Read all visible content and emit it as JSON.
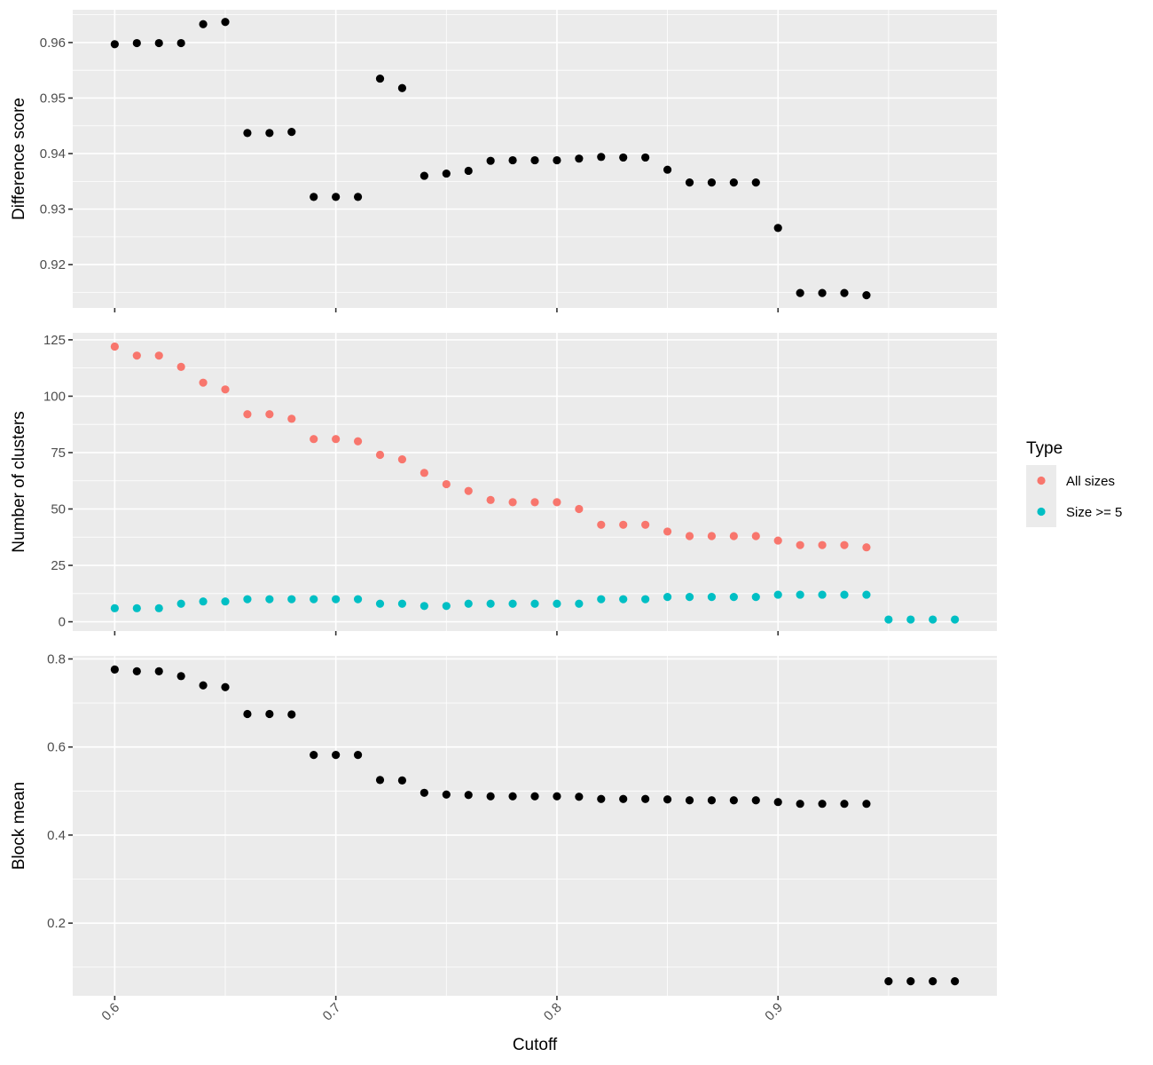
{
  "chart_data": [
    {
      "type": "scatter",
      "ylabel": "Difference score",
      "xlim": [
        0.581,
        0.999
      ],
      "ylim": [
        0.9122,
        0.9659
      ],
      "y_ticks": [
        0.92,
        0.93,
        0.94,
        0.95,
        0.96
      ],
      "y_tick_labels": [
        "0.92",
        "0.93",
        "0.94",
        "0.95",
        "0.96"
      ],
      "grid": true,
      "series": [
        {
          "color": "#000000",
          "x": [
            0.6,
            0.61,
            0.62,
            0.63,
            0.64,
            0.65,
            0.66,
            0.67,
            0.68,
            0.69,
            0.7,
            0.71,
            0.72,
            0.73,
            0.74,
            0.75,
            0.76,
            0.77,
            0.78,
            0.79,
            0.8,
            0.81,
            0.82,
            0.83,
            0.84,
            0.85,
            0.86,
            0.87,
            0.88,
            0.89,
            0.9,
            0.91,
            0.92,
            0.93,
            0.94
          ],
          "y": [
            0.9597,
            0.9599,
            0.9599,
            0.9599,
            0.9633,
            0.9637,
            0.9437,
            0.9437,
            0.9439,
            0.9322,
            0.9322,
            0.9322,
            0.9535,
            0.9518,
            0.936,
            0.9364,
            0.9369,
            0.9387,
            0.9388,
            0.9388,
            0.9388,
            0.9391,
            0.9394,
            0.9393,
            0.9393,
            0.9371,
            0.9348,
            0.9348,
            0.9348,
            0.9348,
            0.9266,
            0.9149,
            0.9149,
            0.9149,
            0.9145
          ]
        }
      ]
    },
    {
      "type": "scatter",
      "ylabel": "Number of clusters",
      "xlim": [
        0.581,
        0.999
      ],
      "ylim": [
        -4.1,
        128.1
      ],
      "y_ticks": [
        0,
        25,
        50,
        75,
        100,
        125
      ],
      "y_tick_labels": [
        "0",
        "25",
        "50",
        "75",
        "100",
        "125"
      ],
      "grid": true,
      "legend": {
        "title": "Type",
        "position": "right",
        "entries": [
          {
            "label": "All sizes",
            "color": "#F8766D"
          },
          {
            "label": "Size >= 5",
            "color": "#00BFC4"
          }
        ]
      },
      "series": [
        {
          "name": "All sizes",
          "color": "#F8766D",
          "x": [
            0.6,
            0.61,
            0.62,
            0.63,
            0.64,
            0.65,
            0.66,
            0.67,
            0.68,
            0.69,
            0.7,
            0.71,
            0.72,
            0.73,
            0.74,
            0.75,
            0.76,
            0.77,
            0.78,
            0.79,
            0.8,
            0.81,
            0.82,
            0.83,
            0.84,
            0.85,
            0.86,
            0.87,
            0.88,
            0.89,
            0.9,
            0.91,
            0.92,
            0.93,
            0.94
          ],
          "y": [
            122,
            118,
            118,
            113,
            106,
            103,
            92,
            92,
            90,
            81,
            81,
            80,
            74,
            72,
            66,
            61,
            58,
            54,
            53,
            53,
            53,
            50,
            43,
            43,
            43,
            40,
            38,
            38,
            38,
            38,
            36,
            34,
            34,
            34,
            33
          ]
        },
        {
          "name": "Size >= 5",
          "color": "#00BFC4",
          "x": [
            0.6,
            0.61,
            0.62,
            0.63,
            0.64,
            0.65,
            0.66,
            0.67,
            0.68,
            0.69,
            0.7,
            0.71,
            0.72,
            0.73,
            0.74,
            0.75,
            0.76,
            0.77,
            0.78,
            0.79,
            0.8,
            0.81,
            0.82,
            0.83,
            0.84,
            0.85,
            0.86,
            0.87,
            0.88,
            0.89,
            0.9,
            0.91,
            0.92,
            0.93,
            0.94,
            0.95,
            0.96,
            0.97,
            0.98
          ],
          "y": [
            6,
            6,
            6,
            8,
            9,
            9,
            10,
            10,
            10,
            10,
            10,
            10,
            8,
            8,
            7,
            7,
            8,
            8,
            8,
            8,
            8,
            8,
            10,
            10,
            10,
            11,
            11,
            11,
            11,
            11,
            12,
            12,
            12,
            12,
            12,
            1,
            1,
            1,
            1
          ]
        }
      ]
    },
    {
      "type": "scatter",
      "ylabel": "Block mean",
      "xlabel": "Cutoff",
      "xlim": [
        0.581,
        0.999
      ],
      "ylim": [
        0.035,
        0.807
      ],
      "y_ticks": [
        0.2,
        0.4,
        0.6,
        0.8
      ],
      "y_tick_labels": [
        "0.2",
        "0.4",
        "0.6",
        "0.8"
      ],
      "x_ticks": [
        0.6,
        0.7,
        0.8,
        0.9
      ],
      "x_tick_labels": [
        "0.6",
        "0.7",
        "0.8",
        "0.9"
      ],
      "grid": true,
      "series": [
        {
          "color": "#000000",
          "x": [
            0.6,
            0.61,
            0.62,
            0.63,
            0.64,
            0.65,
            0.66,
            0.67,
            0.68,
            0.69,
            0.7,
            0.71,
            0.72,
            0.73,
            0.74,
            0.75,
            0.76,
            0.77,
            0.78,
            0.79,
            0.8,
            0.81,
            0.82,
            0.83,
            0.84,
            0.85,
            0.86,
            0.87,
            0.88,
            0.89,
            0.9,
            0.91,
            0.92,
            0.93,
            0.94,
            0.95,
            0.96,
            0.97,
            0.98
          ],
          "y": [
            0.776,
            0.772,
            0.772,
            0.761,
            0.74,
            0.736,
            0.675,
            0.675,
            0.674,
            0.582,
            0.582,
            0.582,
            0.525,
            0.524,
            0.496,
            0.492,
            0.491,
            0.488,
            0.488,
            0.488,
            0.488,
            0.487,
            0.482,
            0.482,
            0.482,
            0.481,
            0.479,
            0.479,
            0.479,
            0.479,
            0.475,
            0.471,
            0.471,
            0.471,
            0.471,
            0.068,
            0.068,
            0.068,
            0.068
          ]
        }
      ]
    }
  ]
}
